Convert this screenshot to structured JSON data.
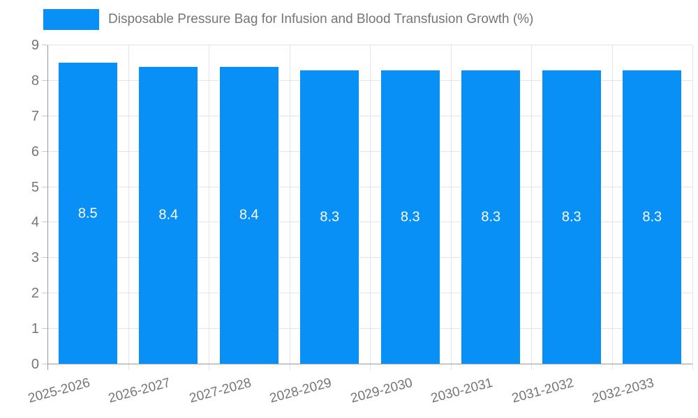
{
  "legend": {
    "label": "Disposable Pressure Bag for Infusion and Blood Transfusion Growth (%)"
  },
  "chart_data": {
    "type": "bar",
    "title": "",
    "xlabel": "",
    "ylabel": "",
    "categories": [
      "2025-2026",
      "2026-2027",
      "2027-2028",
      "2028-2029",
      "2029-2030",
      "2030-2031",
      "2031-2032",
      "2032-2033"
    ],
    "values": [
      8.5,
      8.4,
      8.4,
      8.3,
      8.3,
      8.3,
      8.3,
      8.3
    ],
    "value_labels": [
      "8.5",
      "8.4",
      "8.4",
      "8.3",
      "8.3",
      "8.3",
      "8.3",
      "8.3"
    ],
    "ylim": [
      0,
      9
    ],
    "yticks": [
      0,
      1,
      2,
      3,
      4,
      5,
      6,
      7,
      8,
      9
    ],
    "grid": true,
    "legend_position": "top",
    "series": [
      {
        "name": "Disposable Pressure Bag for Infusion and Blood Transfusion Growth (%)",
        "values": [
          8.5,
          8.4,
          8.4,
          8.3,
          8.3,
          8.3,
          8.3,
          8.3
        ]
      }
    ]
  },
  "colors": {
    "bar": "#0990f6",
    "value_label": "#ffffff",
    "axis": "#999999",
    "grid": "#e4e4e4",
    "tick": "#c8c8c8",
    "text": "#757575",
    "background": "#ffffff"
  }
}
